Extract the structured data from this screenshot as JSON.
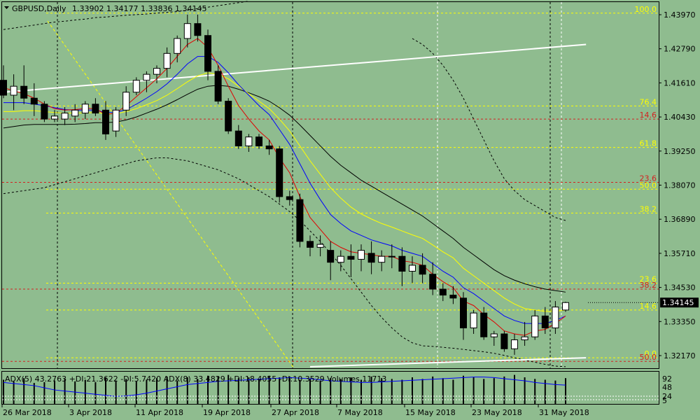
{
  "header": {
    "symbol_timeframe": "GBPUSD,Daily",
    "ohlc": "1.33902 1.34177 1.33836 1.34145"
  },
  "indicator_label": "ADX(5) 43.2763 +DI:21.3622 -DI:5.7420 ADX(8) 33.4829 +DI:18.4055 -DI:10.3529 Volumes 11713",
  "current_price": "1.34145",
  "colors": {
    "background": "#8fbc8f",
    "bull": "#ffffff",
    "bear": "#000000",
    "fib_yellow": "#ffff00",
    "fib_red": "#d42020",
    "ma_red": "#e00000",
    "ma_blue": "#0000ff",
    "ma_yellow": "#ffff00",
    "ma_black": "#000000"
  },
  "price_axis": {
    "labels": [
      "1.43970",
      "1.42790",
      "1.41610",
      "1.40430",
      "1.39250",
      "1.38070",
      "1.36890",
      "1.35710",
      "1.34530",
      "1.33350",
      "1.32170"
    ]
  },
  "date_axis": {
    "labels": [
      "26 Mar 2018",
      "3 Apr 2018",
      "11 Apr 2018",
      "19 Apr 2018",
      "27 Apr 2018",
      "7 May 2018",
      "15 May 2018",
      "23 May 2018",
      "31 May 2018"
    ]
  },
  "indicator_axis": {
    "labels": [
      "92",
      "48",
      "24",
      "5"
    ]
  },
  "fib_levels": [
    {
      "label": "100.0",
      "price": 1.4385,
      "color": "yellow"
    },
    {
      "label": "76.4",
      "price": 1.4074,
      "color": "yellow"
    },
    {
      "label": "14.6",
      "price": 1.403,
      "color": "red"
    },
    {
      "label": "61.8",
      "price": 1.3935,
      "color": "yellow"
    },
    {
      "label": "23.6",
      "price": 1.3818,
      "color": "red"
    },
    {
      "label": "50.0",
      "price": 1.3795,
      "color": "yellow"
    },
    {
      "label": "38.2",
      "price": 1.3715,
      "color": "yellow"
    },
    {
      "label": "23.6",
      "price": 1.348,
      "color": "yellow"
    },
    {
      "label": "38.2",
      "price": 1.346,
      "color": "red"
    },
    {
      "label": "14.6",
      "price": 1.339,
      "color": "yellow"
    },
    {
      "label": "0.0",
      "price": 1.323,
      "color": "yellow"
    },
    {
      "label": "50.0",
      "price": 1.3218,
      "color": "red"
    }
  ],
  "chart_data": {
    "type": "candlestick",
    "title": "GBPUSD,Daily",
    "ylim": [
      1.3195,
      1.4422
    ],
    "candles": [
      [
        1.416,
        1.421,
        1.41,
        1.411
      ],
      [
        1.411,
        1.418,
        1.406,
        1.414
      ],
      [
        1.414,
        1.421,
        1.408,
        1.41
      ],
      [
        1.41,
        1.415,
        1.404,
        1.408
      ],
      [
        1.408,
        1.409,
        1.402,
        1.403
      ],
      [
        1.403,
        1.406,
        1.402,
        1.404
      ],
      [
        1.403,
        1.407,
        1.401,
        1.405
      ],
      [
        1.404,
        1.408,
        1.402,
        1.406
      ],
      [
        1.405,
        1.409,
        1.403,
        1.408
      ],
      [
        1.408,
        1.41,
        1.404,
        1.405
      ],
      [
        1.406,
        1.409,
        1.396,
        1.398
      ],
      [
        1.399,
        1.407,
        1.397,
        1.406
      ],
      [
        1.406,
        1.414,
        1.404,
        1.412
      ],
      [
        1.412,
        1.417,
        1.411,
        1.416
      ],
      [
        1.416,
        1.419,
        1.412,
        1.418
      ],
      [
        1.418,
        1.421,
        1.415,
        1.42
      ],
      [
        1.42,
        1.427,
        1.417,
        1.425
      ],
      [
        1.425,
        1.431,
        1.422,
        1.43
      ],
      [
        1.43,
        1.438,
        1.427,
        1.435
      ],
      [
        1.435,
        1.438,
        1.429,
        1.431
      ],
      [
        1.431,
        1.433,
        1.416,
        1.419
      ],
      [
        1.419,
        1.421,
        1.408,
        1.409
      ],
      [
        1.409,
        1.41,
        1.398,
        1.399
      ],
      [
        1.399,
        1.401,
        1.393,
        1.394
      ],
      [
        1.394,
        1.398,
        1.392,
        1.397
      ],
      [
        1.397,
        1.398,
        1.393,
        1.394
      ],
      [
        1.394,
        1.396,
        1.391,
        1.393
      ],
      [
        1.393,
        1.394,
        1.375,
        1.377
      ],
      [
        1.377,
        1.379,
        1.374,
        1.376
      ],
      [
        1.376,
        1.378,
        1.36,
        1.362
      ],
      [
        1.362,
        1.364,
        1.357,
        1.36
      ],
      [
        1.36,
        1.364,
        1.357,
        1.361
      ],
      [
        1.359,
        1.362,
        1.349,
        1.355
      ],
      [
        1.355,
        1.359,
        1.352,
        1.357
      ],
      [
        1.357,
        1.361,
        1.35,
        1.356
      ],
      [
        1.356,
        1.361,
        1.352,
        1.359
      ],
      [
        1.358,
        1.362,
        1.351,
        1.355
      ],
      [
        1.355,
        1.359,
        1.352,
        1.357
      ],
      [
        1.357,
        1.361,
        1.353,
        1.357
      ],
      [
        1.357,
        1.36,
        1.347,
        1.352
      ],
      [
        1.352,
        1.357,
        1.348,
        1.354
      ],
      [
        1.354,
        1.358,
        1.348,
        1.351
      ],
      [
        1.351,
        1.355,
        1.344,
        1.346
      ],
      [
        1.346,
        1.348,
        1.342,
        1.344
      ],
      [
        1.344,
        1.347,
        1.341,
        1.343
      ],
      [
        1.343,
        1.345,
        1.329,
        1.333
      ],
      [
        1.333,
        1.339,
        1.331,
        1.338
      ],
      [
        1.338,
        1.34,
        1.329,
        1.33
      ],
      [
        1.33,
        1.332,
        1.327,
        1.331
      ],
      [
        1.331,
        1.332,
        1.325,
        1.326
      ],
      [
        1.326,
        1.331,
        1.324,
        1.329
      ],
      [
        1.329,
        1.335,
        1.327,
        1.33
      ],
      [
        1.33,
        1.339,
        1.329,
        1.337
      ],
      [
        1.337,
        1.34,
        1.331,
        1.333
      ],
      [
        1.333,
        1.342,
        1.331,
        1.34
      ],
      [
        1.339,
        1.3418,
        1.3384,
        1.3415
      ]
    ],
    "ma_red": [
      1.4135,
      1.4125,
      1.4115,
      1.41,
      1.408,
      1.4065,
      1.406,
      1.4062,
      1.4065,
      1.4065,
      1.4045,
      1.405,
      1.4075,
      1.4105,
      1.4135,
      1.4165,
      1.42,
      1.424,
      1.428,
      1.43,
      1.427,
      1.421,
      1.414,
      1.4075,
      1.403,
      1.399,
      1.396,
      1.39,
      1.385,
      1.377,
      1.37,
      1.366,
      1.362,
      1.36,
      1.3585,
      1.358,
      1.3575,
      1.357,
      1.357,
      1.3555,
      1.355,
      1.354,
      1.351,
      1.3485,
      1.3465,
      1.342,
      1.3405,
      1.3375,
      1.335,
      1.332,
      1.331,
      1.3305,
      1.332,
      1.3325,
      1.3345,
      1.337
    ],
    "ma_blue": [
      1.4085,
      1.4085,
      1.4085,
      1.408,
      1.4075,
      1.4068,
      1.4062,
      1.406,
      1.406,
      1.406,
      1.4052,
      1.4052,
      1.4062,
      1.408,
      1.41,
      1.4122,
      1.4148,
      1.418,
      1.4215,
      1.424,
      1.424,
      1.422,
      1.4185,
      1.4145,
      1.411,
      1.4075,
      1.4045,
      1.3995,
      1.3945,
      1.388,
      1.3815,
      1.376,
      1.371,
      1.368,
      1.3655,
      1.364,
      1.3625,
      1.3615,
      1.3605,
      1.359,
      1.358,
      1.357,
      1.3545,
      1.352,
      1.35,
      1.3465,
      1.3445,
      1.342,
      1.3395,
      1.337,
      1.3355,
      1.3345,
      1.3345,
      1.3345,
      1.3355,
      1.337
    ],
    "ma_yellow": [
      1.4055,
      1.4055,
      1.4058,
      1.4058,
      1.4055,
      1.4052,
      1.405,
      1.405,
      1.405,
      1.4052,
      1.4048,
      1.4048,
      1.4055,
      1.4065,
      1.4078,
      1.4092,
      1.411,
      1.4132,
      1.4155,
      1.4175,
      1.4185,
      1.418,
      1.4165,
      1.414,
      1.4115,
      1.409,
      1.4065,
      1.403,
      1.399,
      1.394,
      1.389,
      1.3845,
      1.38,
      1.3765,
      1.3735,
      1.3712,
      1.3695,
      1.368,
      1.3668,
      1.3655,
      1.3642,
      1.363,
      1.3608,
      1.3585,
      1.3565,
      1.353,
      1.3505,
      1.348,
      1.3455,
      1.343,
      1.341,
      1.3395,
      1.339,
      1.3385,
      1.3385,
      1.339
    ],
    "ma_black": [
      1.4,
      1.4005,
      1.401,
      1.4012,
      1.4012,
      1.4012,
      1.4012,
      1.4013,
      1.4015,
      1.4018,
      1.4018,
      1.402,
      1.4027,
      1.4037,
      1.405,
      1.4063,
      1.4078,
      1.4095,
      1.4113,
      1.413,
      1.414,
      1.4143,
      1.414,
      1.413,
      1.4118,
      1.4105,
      1.409,
      1.4068,
      1.4043,
      1.401,
      1.3975,
      1.394,
      1.3905,
      1.3875,
      1.385,
      1.3825,
      1.3805,
      1.3785,
      1.3765,
      1.3745,
      1.3725,
      1.3705,
      1.368,
      1.3655,
      1.363,
      1.36,
      1.3575,
      1.355,
      1.3525,
      1.3505,
      1.349,
      1.3478,
      1.3468,
      1.346,
      1.3455,
      1.345
    ],
    "bb_upper": [
      1.433,
      1.4335,
      1.434,
      1.4345,
      1.435,
      1.4355,
      1.4358,
      1.4362,
      1.4365,
      1.437,
      1.4372,
      1.4375,
      1.4378,
      1.438,
      1.4382,
      1.4385,
      1.4388,
      1.439,
      1.4395,
      1.44,
      1.4405,
      1.441,
      1.4415,
      1.442,
      1.4425
    ],
    "bb_lower": [
      1.378,
      1.3785,
      1.379,
      1.3795,
      1.38,
      1.381,
      1.382,
      1.383,
      1.384,
      1.385,
      1.386,
      1.387,
      1.388,
      1.389,
      1.3895,
      1.39,
      1.39,
      1.3895,
      1.389,
      1.388,
      1.387,
      1.386,
      1.3845,
      1.383,
      1.381,
      1.379,
      1.377,
      1.3745,
      1.372,
      1.369,
      1.3655,
      1.362,
      1.358,
      1.354,
      1.3495,
      1.345,
      1.3405,
      1.3365,
      1.333,
      1.33,
      1.328,
      1.327,
      1.3268,
      1.3265,
      1.3262,
      1.3258,
      1.3254,
      1.325,
      1.3245,
      1.3238,
      1.323,
      1.3222,
      1.3215,
      1.3208,
      1.3202,
      1.32
    ],
    "bb2_upper": [
      1.43,
      1.428,
      1.425,
      1.421,
      1.416,
      1.41,
      1.403,
      1.396,
      1.389,
      1.383,
      1.379,
      1.376,
      1.374,
      1.372,
      1.37,
      1.369
    ],
    "trendlines": [
      {
        "from": [
          0,
          1.412
        ],
        "to": [
          57,
          1.428
        ],
        "color": "white"
      },
      {
        "from": [
          30,
          1.32
        ],
        "to": [
          57,
          1.323
        ],
        "color": "white"
      }
    ]
  },
  "indicator_data": {
    "volume_bars": [
      30,
      28,
      32,
      26,
      27,
      29,
      31,
      28,
      30,
      27,
      33,
      29,
      31,
      28,
      30,
      32,
      34,
      29,
      33,
      31,
      35,
      34,
      36,
      32,
      33,
      31,
      35,
      33,
      34,
      30,
      31,
      29,
      32,
      31,
      33,
      30,
      34,
      32,
      31,
      30,
      33,
      31,
      34,
      32,
      30,
      35,
      33,
      31,
      32,
      34,
      36,
      33,
      31,
      30,
      29,
      32
    ],
    "adx_line": [
      40,
      38,
      36,
      34,
      30,
      26,
      24,
      22,
      20,
      18,
      16,
      14,
      15,
      17,
      20,
      24,
      28,
      32,
      36,
      38,
      40,
      42,
      43,
      44,
      45,
      46,
      47,
      48,
      49,
      48,
      47,
      45,
      43,
      42,
      41,
      40,
      40,
      41,
      42,
      43,
      44,
      45,
      46,
      47,
      48,
      49,
      50,
      50,
      49,
      47,
      45,
      43,
      40,
      38,
      36,
      35
    ]
  }
}
